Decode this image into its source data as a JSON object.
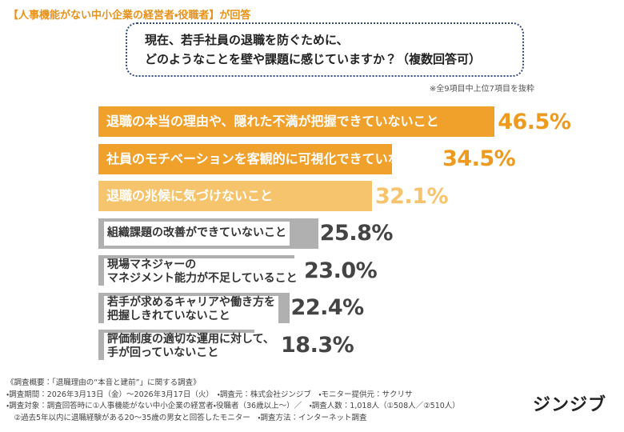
{
  "chart_data": {
    "type": "bar",
    "orientation": "horizontal",
    "subject": "【人事機能がない中小企業の経営者・役職者】が回答",
    "title_lines": [
      "現在、若手社員の退職を防ぐために、",
      "どのようなことを壁や課題に感じていますか？（複数回答可）"
    ],
    "note": "※全9項目中上位7項目を抜粋",
    "categories": [
      "退職の本当の理由や、隠れた不満が把握できていないこと",
      "社員のモチベーションを客観的に可視化できていないこと",
      "退職の兆候に気づけないこと",
      "組織課題の改善ができていないこと",
      "現場マネジャーの\nマネジメント能力が不足していること",
      "若手が求めるキャリアや働き方を\n把握しきれていないこと",
      "評価制度の適切な運用に対して、\n手が回っていないこと"
    ],
    "values": [
      46.5,
      34.5,
      32.1,
      25.8,
      23.0,
      22.4,
      18.3
    ],
    "value_labels": [
      "46.5%",
      "34.5%",
      "32.1%",
      "25.8%",
      "23.0%",
      "22.4%",
      "18.3%"
    ],
    "colors": [
      "#f0a12b",
      "#f0a12b",
      "#f7c46e",
      "#b0b0b0",
      "#b0b0b0",
      "#b0b0b0",
      "#b0b0b0"
    ],
    "value_label_colors": [
      "#ee9a1e",
      "#ee9a1e",
      "#f7c46e",
      "#444444",
      "#444444",
      "#444444",
      "#444444"
    ],
    "footer": [
      "《調査概要：「退職理由の“本音と建前”」に関する調査》",
      "・調査期間：2026年3月13日（金）〜2026年3月17日（火）　・調査元：株式会社ジンジブ　・モニター提供元：サクリサ",
      "・調査対象：調査回答時に①人事機能がない中小企業の経営者・役職者（36歳以上〜）／　・調査人数：1,018人（①508人／②510人）",
      "　②過去5年以内に退職経験がある20〜35歳の男女と回答したモニター　・調査方法：インターネット調査"
    ],
    "logo": "ジンジブ"
  }
}
